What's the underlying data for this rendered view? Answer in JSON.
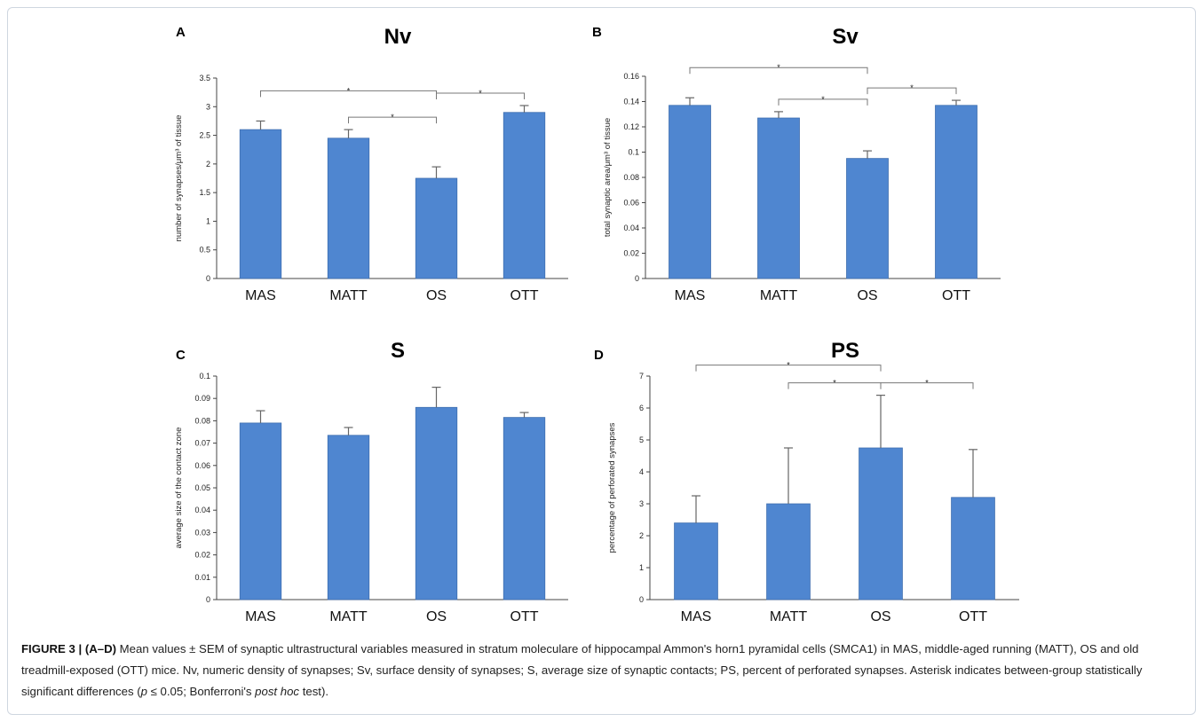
{
  "chart_data": [
    {
      "letter": "A",
      "type": "bar",
      "title": "Nv",
      "ylabel": "number of synapses/μm³ of tissue",
      "categories": [
        "MAS",
        "MATT",
        "OS",
        "OTT"
      ],
      "values": [
        2.6,
        2.45,
        1.75,
        2.9
      ],
      "errors": [
        0.15,
        0.15,
        0.2,
        0.12
      ],
      "ylim": [
        0,
        3.5
      ],
      "yticks": [
        "0",
        "0.5",
        "1",
        "1.5",
        "2",
        "2.5",
        "3",
        "3.5"
      ],
      "significance": [
        {
          "from": "MAS",
          "to": "OS",
          "label": "*"
        },
        {
          "from": "MATT",
          "to": "OS",
          "label": "*"
        },
        {
          "from": "OS",
          "to": "OTT",
          "label": "*"
        }
      ],
      "bar_color": "#4f86d0"
    },
    {
      "letter": "B",
      "type": "bar",
      "title": "Sv",
      "ylabel": "total synaptic area/μm³ of tissue",
      "categories": [
        "MAS",
        "MATT",
        "OS",
        "OTT"
      ],
      "values": [
        0.137,
        0.127,
        0.095,
        0.137
      ],
      "errors": [
        0.006,
        0.005,
        0.006,
        0.004
      ],
      "ylim": [
        0,
        0.16
      ],
      "yticks": [
        "0",
        "0.02",
        "0.04",
        "0.06",
        "0.08",
        "0.1",
        "0.12",
        "0.14",
        "0.16"
      ],
      "significance": [
        {
          "from": "MAS",
          "to": "OS",
          "label": "*"
        },
        {
          "from": "MATT",
          "to": "OS",
          "label": "*"
        },
        {
          "from": "OS",
          "to": "OTT",
          "label": "*"
        }
      ],
      "bar_color": "#4f86d0"
    },
    {
      "letter": "C",
      "type": "bar",
      "title": "S",
      "ylabel": "average size of the contact zone",
      "categories": [
        "MAS",
        "MATT",
        "OS",
        "OTT"
      ],
      "values": [
        0.079,
        0.0735,
        0.086,
        0.0815
      ],
      "errors": [
        0.0055,
        0.0035,
        0.009,
        0.0022
      ],
      "ylim": [
        0,
        0.1
      ],
      "yticks": [
        "0",
        "0.01",
        "0.02",
        "0.03",
        "0.04",
        "0.05",
        "0.06",
        "0.07",
        "0.08",
        "0.09",
        "0.1"
      ],
      "significance": [],
      "bar_color": "#4f86d0"
    },
    {
      "letter": "D",
      "type": "bar",
      "title": "PS",
      "ylabel": "percentage of perforated synapses",
      "categories": [
        "MAS",
        "MATT",
        "OS",
        "OTT"
      ],
      "values": [
        2.4,
        3.0,
        4.75,
        3.2
      ],
      "errors": [
        0.85,
        1.75,
        1.65,
        1.5
      ],
      "ylim": [
        0,
        7
      ],
      "yticks": [
        "0",
        "1",
        "2",
        "3",
        "4",
        "5",
        "6",
        "7"
      ],
      "significance": [
        {
          "from": "MAS",
          "to": "OS",
          "label": "*"
        },
        {
          "from": "MATT",
          "to": "OS",
          "label": "*"
        },
        {
          "from": "OS",
          "to": "OTT",
          "label": "*"
        }
      ],
      "bar_color": "#4f86d0"
    }
  ],
  "caption": {
    "label": "FIGURE 3 | (A–D)",
    "part1": " Mean values ± SEM of synaptic ultrastructural variables measured in stratum moleculare of hippocampal Ammon's horn1 pyramidal cells (SMCA1) in MAS, middle-aged running (MATT), OS and old treadmill-exposed (OTT) mice. Nv, numeric density of synapses; Sv, surface density of synapses; S, average size of synaptic contacts; PS, percent of perforated synapses. Asterisk indicates between-group statistically significant differences (",
    "p_symbol": "p",
    "part2": " ≤ 0.05; Bonferroni's ",
    "italic": "post hoc",
    "part3": " test)."
  }
}
